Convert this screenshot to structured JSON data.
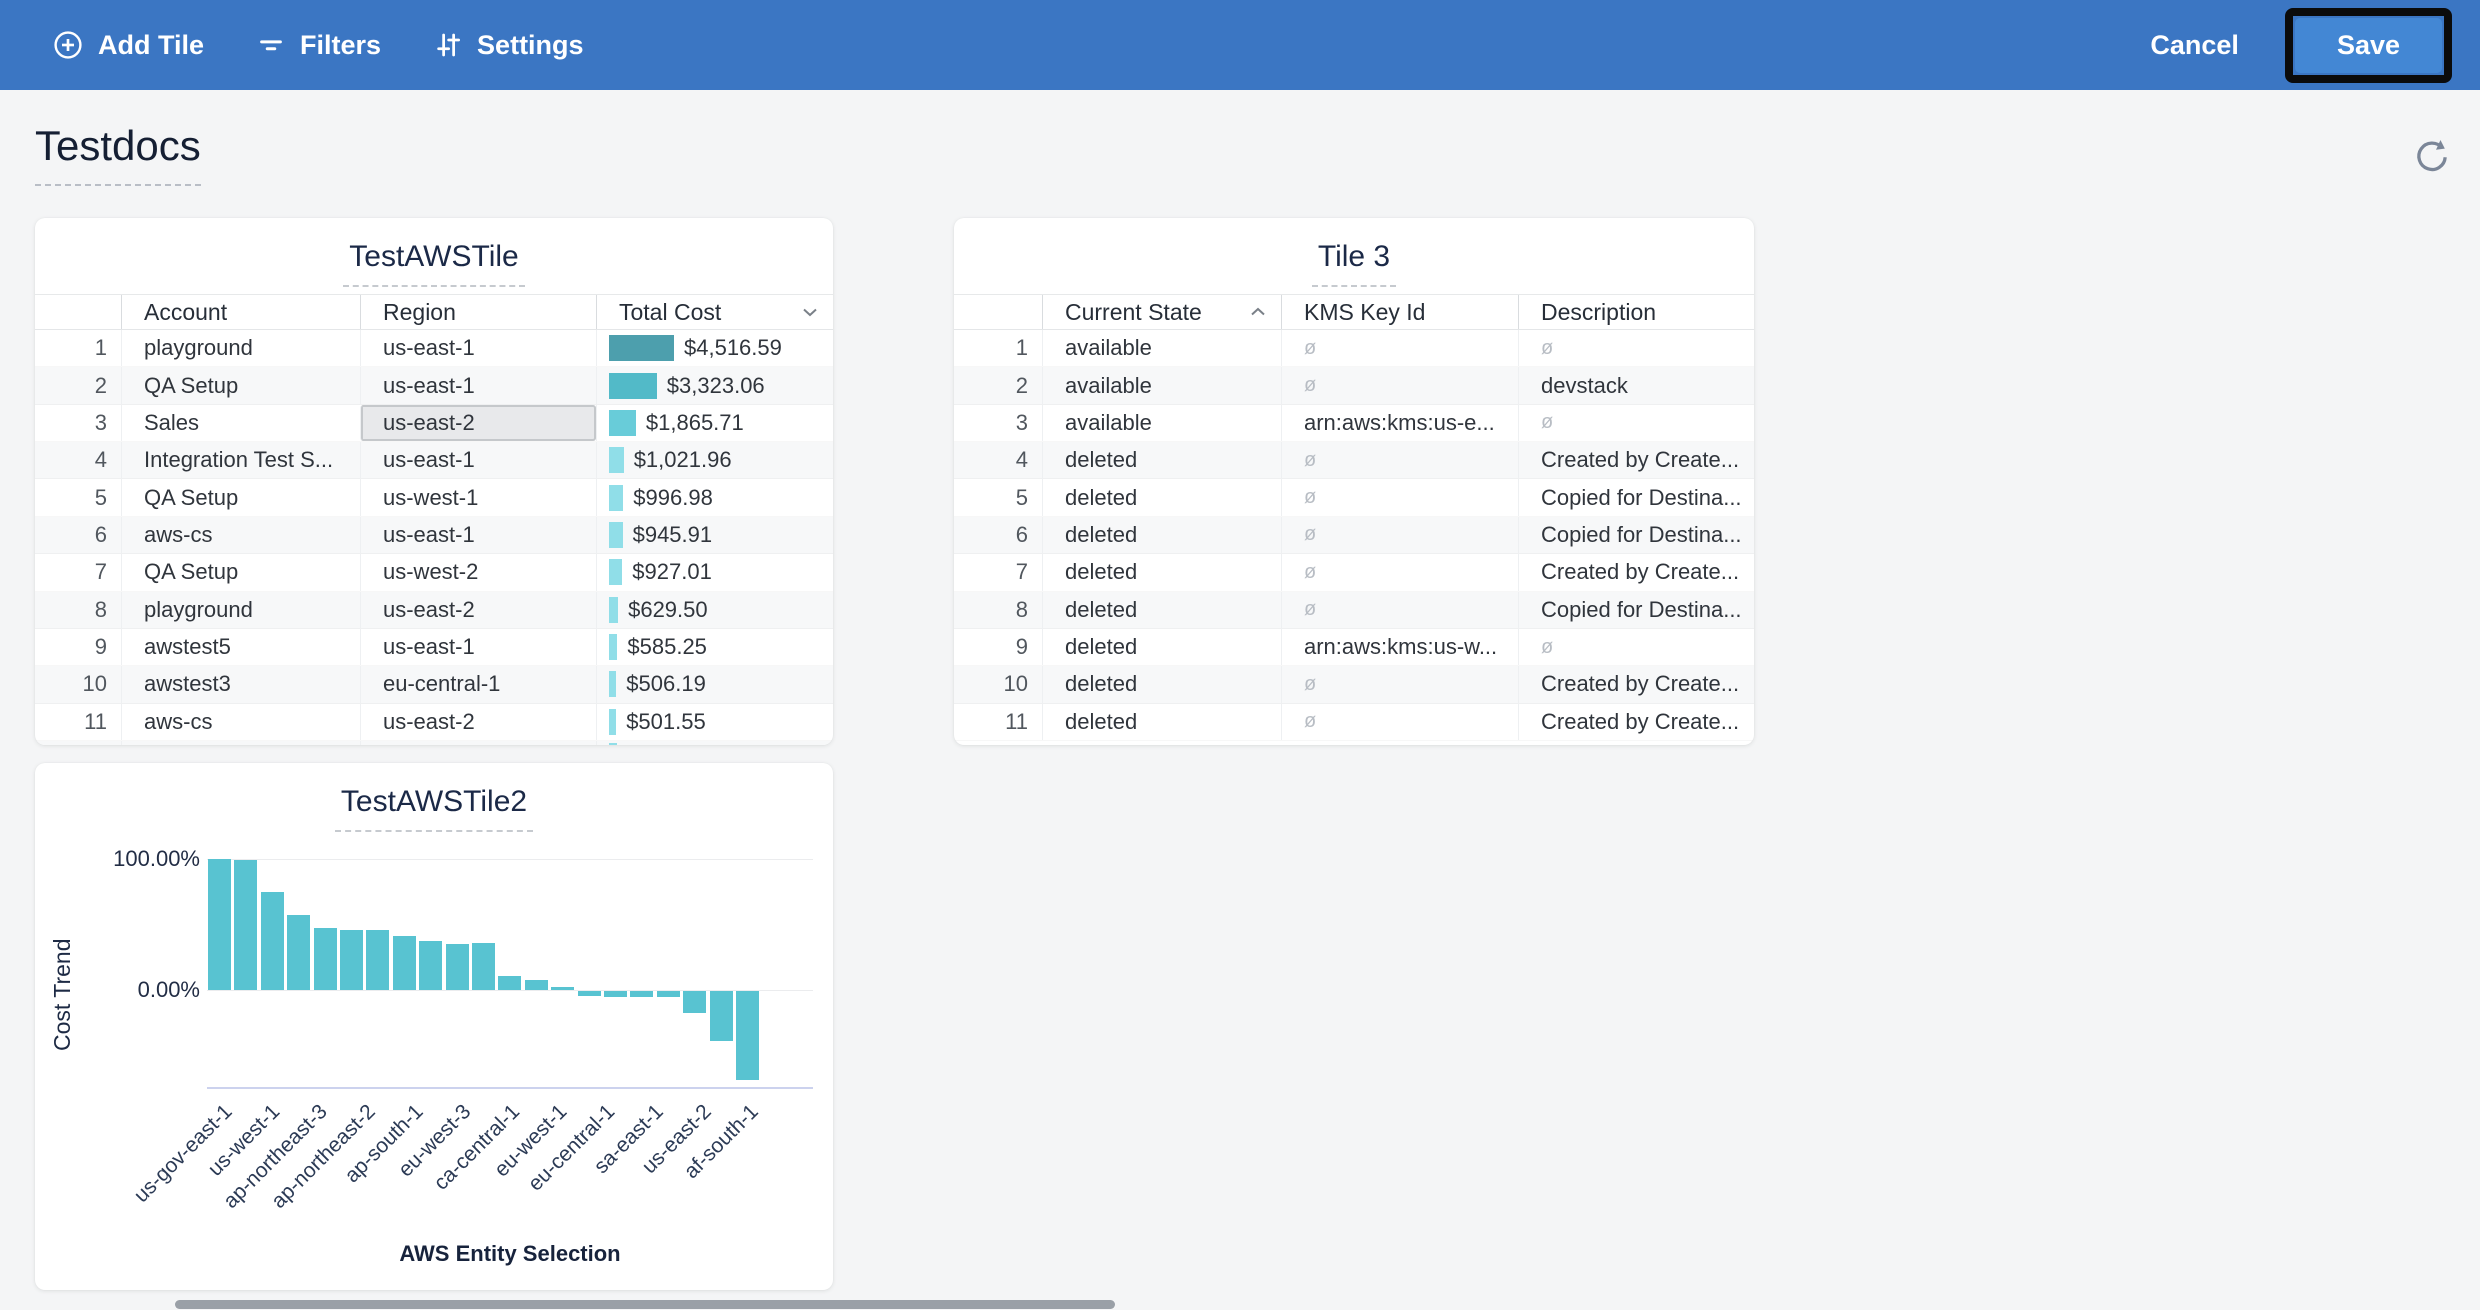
{
  "toolbar": {
    "add_tile_label": "Add Tile",
    "filters_label": "Filters",
    "settings_label": "Settings",
    "cancel_label": "Cancel",
    "save_label": "Save",
    "bg_color": "#3b76c3",
    "save_button_color": "#4387d4"
  },
  "page": {
    "title": "Testdocs"
  },
  "tile_test_aws": {
    "title": "TestAWSTile",
    "columns": {
      "account": "Account",
      "region": "Region",
      "total_cost": "Total Cost"
    },
    "sort": {
      "column": "Total Cost",
      "direction": "desc"
    },
    "max_cost_value": 4516.59,
    "rows": [
      {
        "n": "1",
        "account": "playground",
        "region": "us-east-1",
        "total_cost": "$4,516.59",
        "cost_value": 4516.59,
        "bar_color": "#4d9fad"
      },
      {
        "n": "2",
        "account": "QA Setup",
        "region": "us-east-1",
        "total_cost": "$3,323.06",
        "cost_value": 3323.06,
        "bar_color": "#52bac8"
      },
      {
        "n": "3",
        "account": "Sales",
        "region": "us-east-2",
        "total_cost": "$1,865.71",
        "cost_value": 1865.71,
        "bar_color": "#68ccd9",
        "selected_column": "region"
      },
      {
        "n": "4",
        "account": "Integration Test S...",
        "region": "us-east-1",
        "total_cost": "$1,021.96",
        "cost_value": 1021.96,
        "bar_color": "#90dee8"
      },
      {
        "n": "5",
        "account": "QA Setup",
        "region": "us-west-1",
        "total_cost": "$996.98",
        "cost_value": 996.98,
        "bar_color": "#90dee8"
      },
      {
        "n": "6",
        "account": "aws-cs",
        "region": "us-east-1",
        "total_cost": "$945.91",
        "cost_value": 945.91,
        "bar_color": "#90dee8"
      },
      {
        "n": "7",
        "account": "QA Setup",
        "region": "us-west-2",
        "total_cost": "$927.01",
        "cost_value": 927.01,
        "bar_color": "#90dee8"
      },
      {
        "n": "8",
        "account": "playground",
        "region": "us-east-2",
        "total_cost": "$629.50",
        "cost_value": 629.5,
        "bar_color": "#90dee8"
      },
      {
        "n": "9",
        "account": "awstest5",
        "region": "us-east-1",
        "total_cost": "$585.25",
        "cost_value": 585.25,
        "bar_color": "#90dee8"
      },
      {
        "n": "10",
        "account": "awstest3",
        "region": "eu-central-1",
        "total_cost": "$506.19",
        "cost_value": 506.19,
        "bar_color": "#90dee8"
      },
      {
        "n": "11",
        "account": "aws-cs",
        "region": "us-east-2",
        "total_cost": "$501.55",
        "cost_value": 501.55,
        "bar_color": "#90dee8"
      }
    ]
  },
  "tile_3": {
    "title": "Tile 3",
    "columns": {
      "current_state": "Current State",
      "kms_key_id": "KMS Key Id",
      "description": "Description"
    },
    "sort": {
      "column": "Current State",
      "direction": "asc"
    },
    "empty_symbol": "ø",
    "rows": [
      {
        "n": "1",
        "current_state": "available",
        "kms_key_id": null,
        "description": null
      },
      {
        "n": "2",
        "current_state": "available",
        "kms_key_id": null,
        "description": "devstack"
      },
      {
        "n": "3",
        "current_state": "available",
        "kms_key_id": "arn:aws:kms:us-e...",
        "description": null
      },
      {
        "n": "4",
        "current_state": "deleted",
        "kms_key_id": null,
        "description": "Created by Create..."
      },
      {
        "n": "5",
        "current_state": "deleted",
        "kms_key_id": null,
        "description": "Copied for Destina..."
      },
      {
        "n": "6",
        "current_state": "deleted",
        "kms_key_id": null,
        "description": "Copied for Destina..."
      },
      {
        "n": "7",
        "current_state": "deleted",
        "kms_key_id": null,
        "description": "Created by Create..."
      },
      {
        "n": "8",
        "current_state": "deleted",
        "kms_key_id": null,
        "description": "Copied for Destina..."
      },
      {
        "n": "9",
        "current_state": "deleted",
        "kms_key_id": "arn:aws:kms:us-w...",
        "description": null
      },
      {
        "n": "10",
        "current_state": "deleted",
        "kms_key_id": null,
        "description": "Created by Create..."
      },
      {
        "n": "11",
        "current_state": "deleted",
        "kms_key_id": null,
        "description": "Created by Create..."
      }
    ]
  },
  "chart_data": {
    "type": "bar",
    "title": "TestAWSTile2",
    "xlabel": "AWS Entity Selection",
    "ylabel": "Cost Trend",
    "y_tick_labels": [
      "100.00%",
      "0.00%"
    ],
    "x_tick_labels": [
      "us-gov-east-1",
      "us-west-1",
      "ap-northeast-3",
      "ap-northeast-2",
      "ap-south-1",
      "eu-west-3",
      "ca-central-1",
      "eu-west-1",
      "eu-central-1",
      "sa-east-1",
      "us-east-2",
      "af-south-1"
    ],
    "values_pct": [
      100,
      99.5,
      75,
      57,
      47,
      45.5,
      46,
      41,
      37.5,
      35.5,
      36,
      11,
      8,
      2.5,
      -4,
      -4.5,
      -4.5,
      -4.5,
      -17,
      -38,
      -68
    ],
    "ylim": [
      -75,
      105
    ],
    "bar_color": "#58c3d1",
    "grid": "horizontal",
    "legend": "none"
  }
}
